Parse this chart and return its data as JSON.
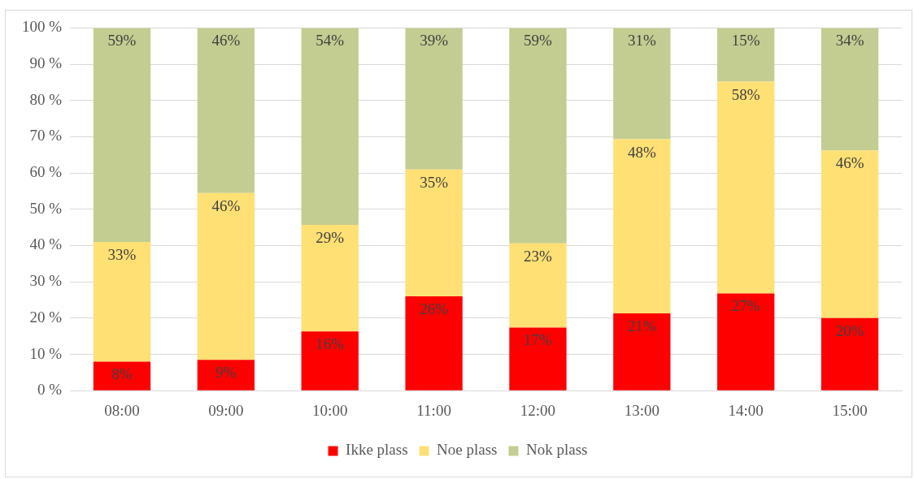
{
  "chart_data": {
    "type": "bar",
    "stacked": true,
    "categories": [
      "08:00",
      "09:00",
      "10:00",
      "11:00",
      "12:00",
      "13:00",
      "14:00",
      "15:00"
    ],
    "series": [
      {
        "name": "Ikke plass",
        "color": "#ff0000",
        "values": [
          8,
          8.5,
          16.3,
          26,
          17.4,
          21.3,
          26.8,
          20
        ],
        "value_labels": [
          "8%",
          "9%",
          "16%",
          "26%",
          "17%",
          "21%",
          "27%",
          "20%"
        ]
      },
      {
        "name": "Noe plass",
        "color": "#ffe074",
        "values": [
          33,
          46,
          29.4,
          35,
          23.2,
          48,
          58.4,
          46.2
        ],
        "value_labels": [
          "33%",
          "46%",
          "29%",
          "35%",
          "23%",
          "48%",
          "58%",
          "46%"
        ]
      },
      {
        "name": "Nok plass",
        "color": "#c4cd91",
        "values": [
          59,
          45.5,
          54.3,
          39,
          59.4,
          30.7,
          14.8,
          33.8
        ],
        "value_labels": [
          "59%",
          "46%",
          "54%",
          "39%",
          "59%",
          "31%",
          "15%",
          "34%"
        ]
      }
    ],
    "ylim": [
      0,
      100
    ],
    "yticks": [
      {
        "value": 0,
        "label": "0 %"
      },
      {
        "value": 10,
        "label": "10 %"
      },
      {
        "value": 20,
        "label": "20 %"
      },
      {
        "value": 30,
        "label": "30 %"
      },
      {
        "value": 40,
        "label": "40 %"
      },
      {
        "value": 50,
        "label": "50 %"
      },
      {
        "value": 60,
        "label": "60 %"
      },
      {
        "value": 70,
        "label": "70 %"
      },
      {
        "value": 80,
        "label": "80 %"
      },
      {
        "value": 90,
        "label": "90 %"
      },
      {
        "value": 100,
        "label": "100 %"
      }
    ],
    "grid": "y",
    "legend": "bottom"
  }
}
